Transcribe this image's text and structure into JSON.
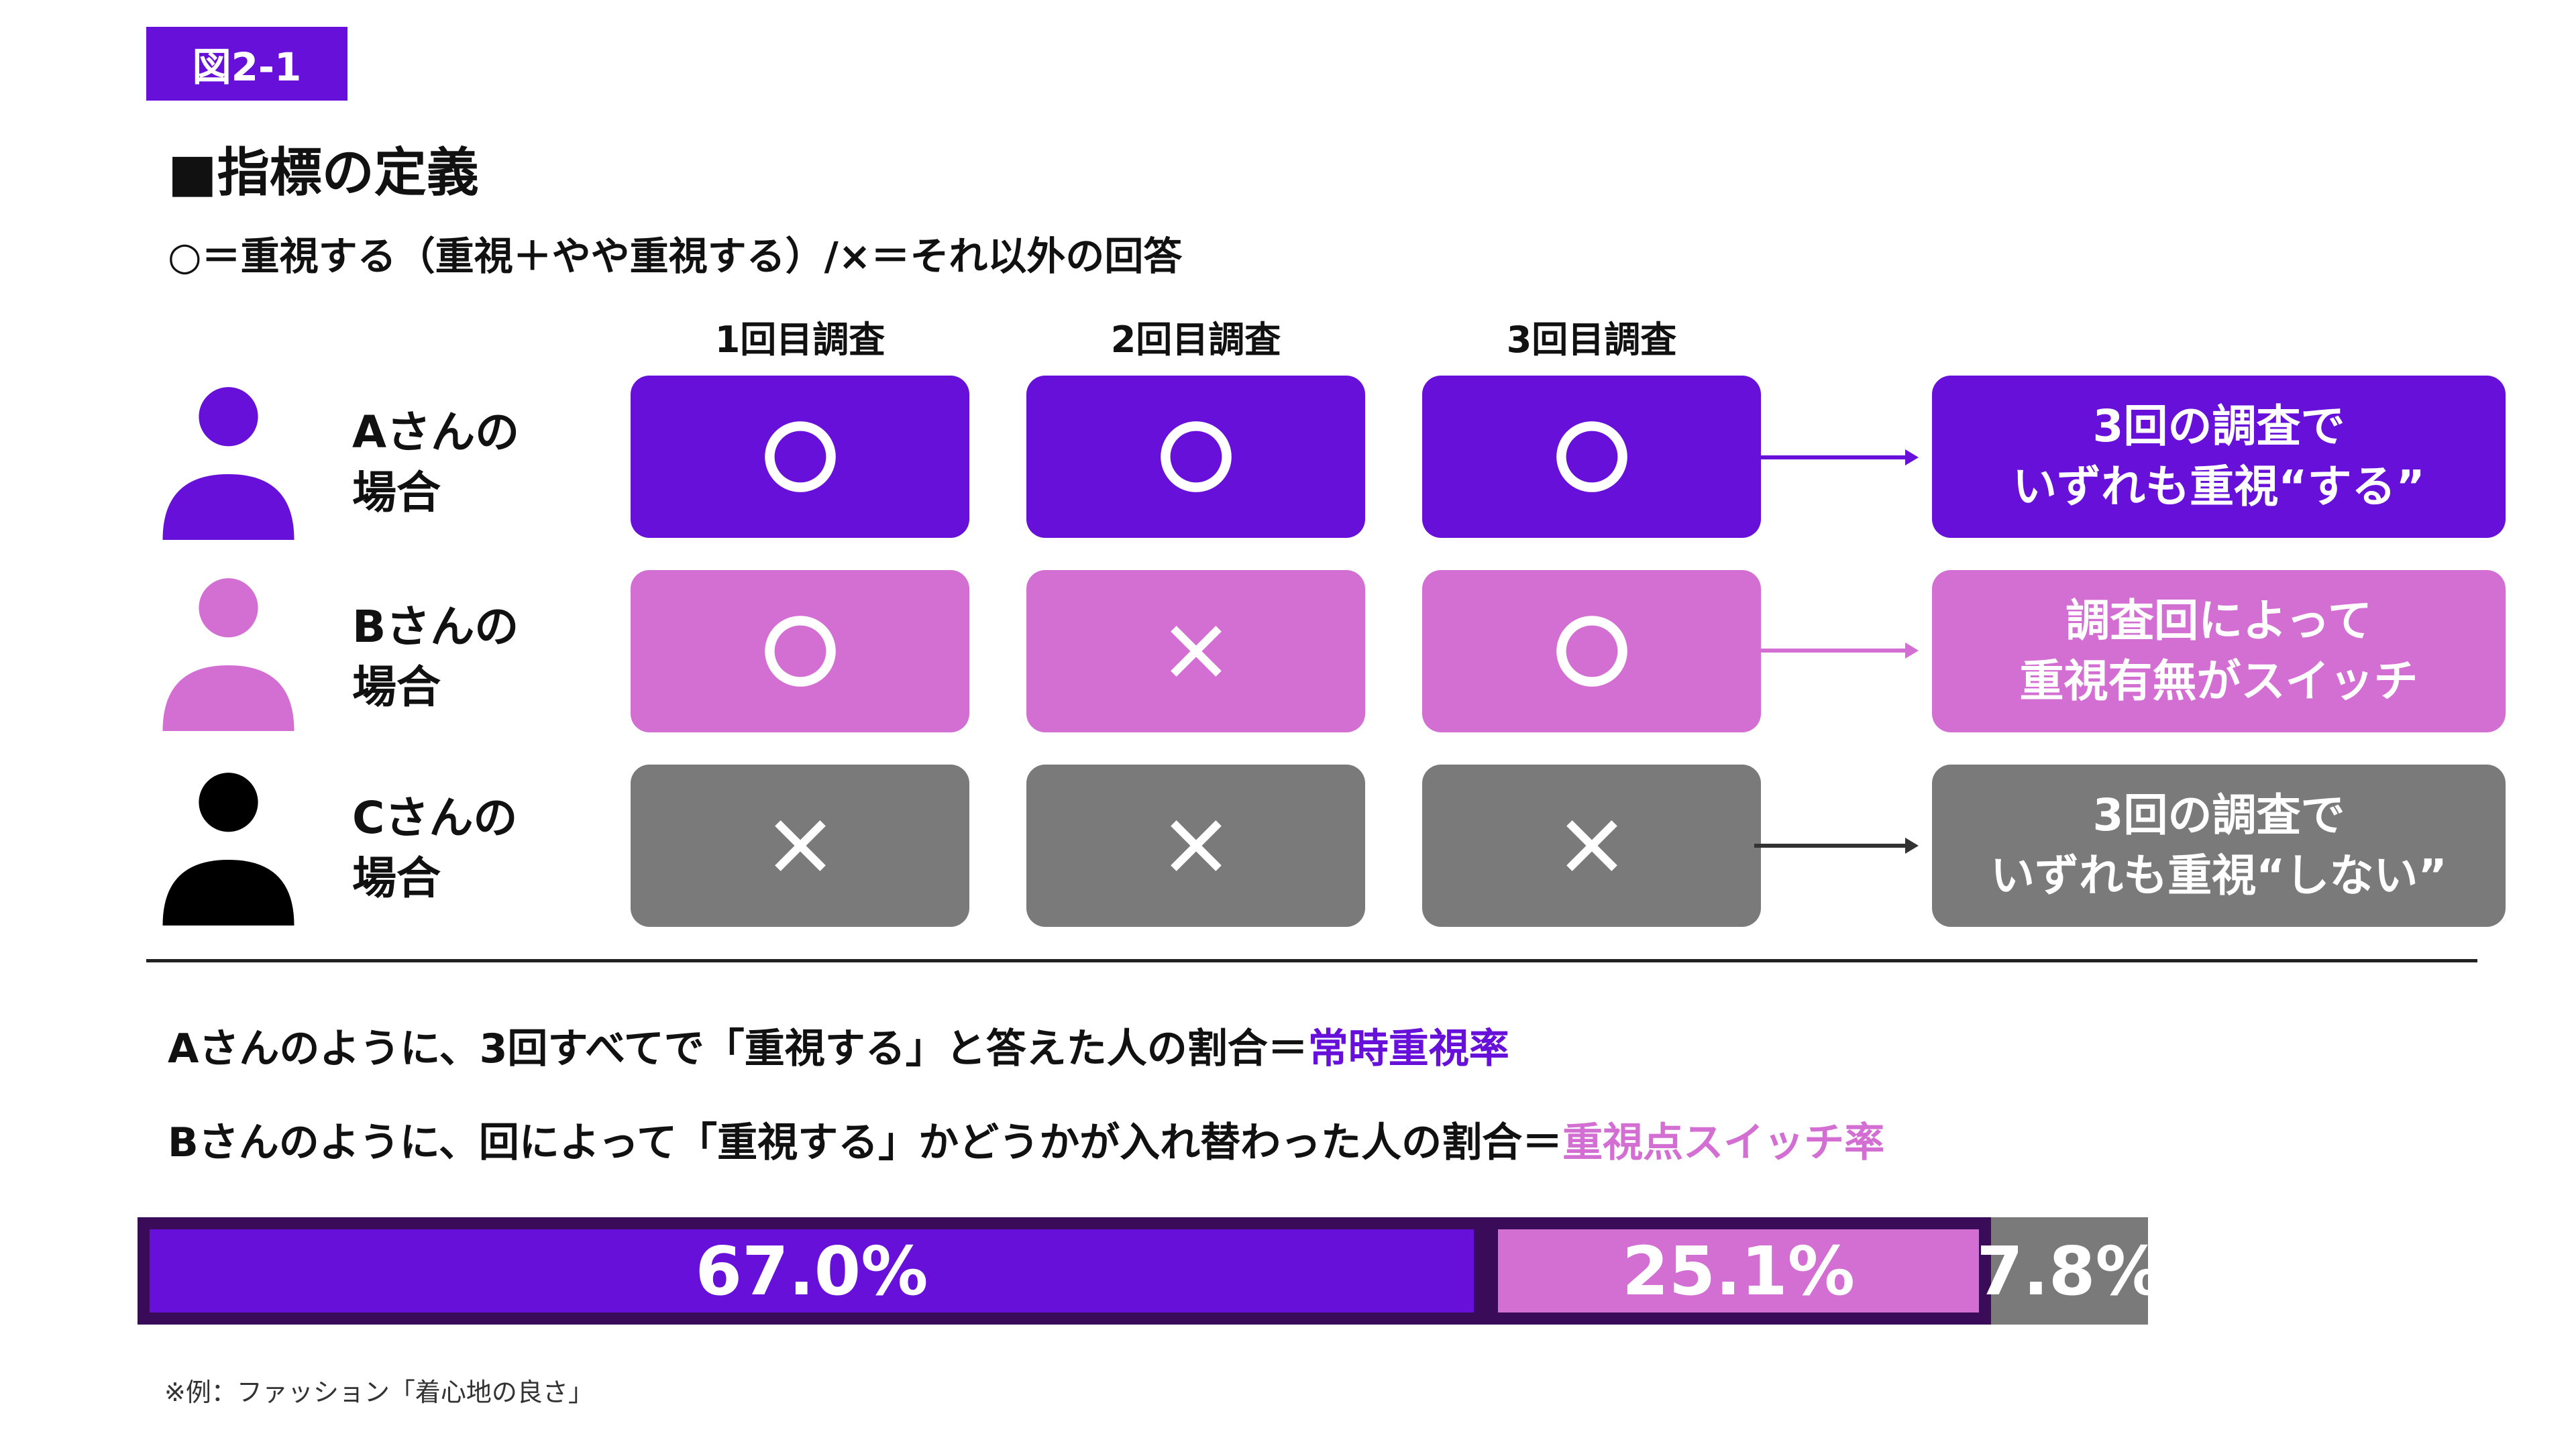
{
  "figure_tag": "図2-1",
  "heading": "■指標の定義",
  "legend": "○＝重視する（重視＋やや重視する）/×＝それ以外の回答",
  "columns": [
    "1回目調査",
    "2回目調査",
    "3回目調査"
  ],
  "rows": [
    {
      "label_line1": "Aさんの",
      "label_line2": "場合",
      "marks": [
        "○",
        "○",
        "○"
      ],
      "result_line1": "3回の調査で",
      "result_line2": "いずれも重視“する”",
      "color": "#6610d9"
    },
    {
      "label_line1": "Bさんの",
      "label_line2": "場合",
      "marks": [
        "○",
        "×",
        "○"
      ],
      "result_line1": "調査回によって",
      "result_line2": "重視有無がスイッチ",
      "color": "#d36ed3"
    },
    {
      "label_line1": "Cさんの",
      "label_line2": "場合",
      "marks": [
        "×",
        "×",
        "×"
      ],
      "result_line1": "3回の調査で",
      "result_line2": "いずれも重視“しない”",
      "color": "#000000"
    }
  ],
  "definitions": [
    {
      "text": "Aさんのように、3回すべてで「重視する」と答えた人の割合＝",
      "term": "常時重視率",
      "term_color": "#6610d9"
    },
    {
      "text": "Bさんのように、回によって「重視する」かどうかが入れ替わった人の割合＝",
      "term": "重視点スイッチ率",
      "term_color": "#d36ed3"
    }
  ],
  "bar": [
    {
      "label": "67.0%",
      "value": 67.0,
      "color": "#6610d9"
    },
    {
      "label": "25.1%",
      "value": 25.1,
      "color": "#d36ed3"
    },
    {
      "label": "7.8%",
      "value": 7.8,
      "color": "#7a7a7a"
    }
  ],
  "footnote": "※例：ファッション「着心地の良さ」"
}
